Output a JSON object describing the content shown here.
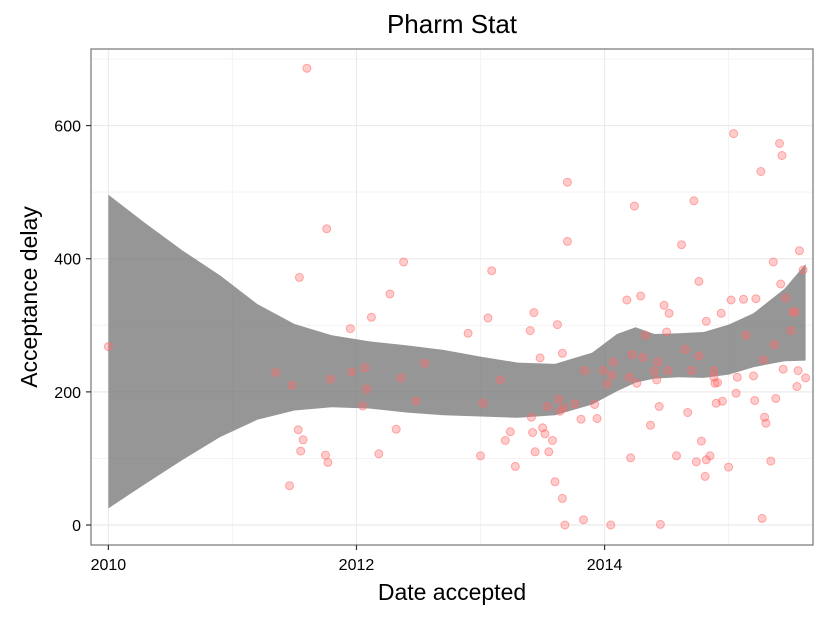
{
  "chart_data": {
    "type": "scatter",
    "title": "Pharm Stat",
    "xlabel": "Date accepted",
    "ylabel": "Acceptance delay",
    "xlim": [
      2009.86,
      2015.68
    ],
    "ylim": [
      -30,
      715
    ],
    "x_ticks": [
      2010,
      2012,
      2014
    ],
    "x_tick_labels": [
      "2010",
      "2012",
      "2014"
    ],
    "y_ticks": [
      0,
      200,
      400,
      600
    ],
    "y_tick_labels": [
      "0",
      "200",
      "400",
      "600"
    ],
    "grid": true,
    "point_color": "#ff6b6b",
    "band_color": "#6e6e6e",
    "points": [
      [
        2010.0,
        268
      ],
      [
        2011.35,
        229
      ],
      [
        2011.46,
        59
      ],
      [
        2011.48,
        210
      ],
      [
        2011.53,
        143
      ],
      [
        2011.54,
        372
      ],
      [
        2011.55,
        111
      ],
      [
        2011.57,
        128
      ],
      [
        2011.6,
        686
      ],
      [
        2011.75,
        105
      ],
      [
        2011.76,
        445
      ],
      [
        2011.77,
        94
      ],
      [
        2011.79,
        219
      ],
      [
        2011.95,
        295
      ],
      [
        2011.96,
        230
      ],
      [
        2012.05,
        179
      ],
      [
        2012.07,
        236
      ],
      [
        2012.08,
        204
      ],
      [
        2012.12,
        312
      ],
      [
        2012.18,
        107
      ],
      [
        2012.27,
        347
      ],
      [
        2012.32,
        144
      ],
      [
        2012.36,
        221
      ],
      [
        2012.38,
        395
      ],
      [
        2012.48,
        186
      ],
      [
        2012.55,
        243
      ],
      [
        2012.9,
        288
      ],
      [
        2013.0,
        104
      ],
      [
        2013.02,
        183
      ],
      [
        2013.06,
        311
      ],
      [
        2013.09,
        382
      ],
      [
        2013.16,
        218
      ],
      [
        2013.2,
        127
      ],
      [
        2013.24,
        140
      ],
      [
        2013.28,
        88
      ],
      [
        2013.4,
        292
      ],
      [
        2013.41,
        162
      ],
      [
        2013.42,
        139
      ],
      [
        2013.43,
        319
      ],
      [
        2013.44,
        110
      ],
      [
        2013.48,
        251
      ],
      [
        2013.5,
        146
      ],
      [
        2013.52,
        137
      ],
      [
        2013.54,
        178
      ],
      [
        2013.55,
        110
      ],
      [
        2013.58,
        127
      ],
      [
        2013.6,
        65
      ],
      [
        2013.62,
        301
      ],
      [
        2013.63,
        189
      ],
      [
        2013.64,
        171
      ],
      [
        2013.66,
        40
      ],
      [
        2013.66,
        258
      ],
      [
        2013.67,
        176
      ],
      [
        2013.68,
        0
      ],
      [
        2013.7,
        515
      ],
      [
        2013.7,
        426
      ],
      [
        2013.76,
        182
      ],
      [
        2013.81,
        159
      ],
      [
        2013.83,
        8
      ],
      [
        2013.84,
        232
      ],
      [
        2013.92,
        181
      ],
      [
        2013.94,
        160
      ],
      [
        2013.99,
        232
      ],
      [
        2014.02,
        212
      ],
      [
        2014.05,
        0
      ],
      [
        2014.06,
        225
      ],
      [
        2014.07,
        245
      ],
      [
        2014.18,
        338
      ],
      [
        2014.2,
        222
      ],
      [
        2014.21,
        101
      ],
      [
        2014.22,
        256
      ],
      [
        2014.24,
        479
      ],
      [
        2014.26,
        213
      ],
      [
        2014.29,
        344
      ],
      [
        2014.31,
        252
      ],
      [
        2014.33,
        285
      ],
      [
        2014.37,
        150
      ],
      [
        2014.4,
        231
      ],
      [
        2014.42,
        218
      ],
      [
        2014.43,
        245
      ],
      [
        2014.44,
        178
      ],
      [
        2014.45,
        1
      ],
      [
        2014.48,
        330
      ],
      [
        2014.5,
        290
      ],
      [
        2014.51,
        232
      ],
      [
        2014.52,
        318
      ],
      [
        2014.58,
        104
      ],
      [
        2014.62,
        421
      ],
      [
        2014.65,
        264
      ],
      [
        2014.67,
        169
      ],
      [
        2014.7,
        232
      ],
      [
        2014.72,
        487
      ],
      [
        2014.74,
        95
      ],
      [
        2014.76,
        254
      ],
      [
        2014.76,
        366
      ],
      [
        2014.78,
        126
      ],
      [
        2014.81,
        73
      ],
      [
        2014.82,
        98
      ],
      [
        2014.82,
        306
      ],
      [
        2014.85,
        104
      ],
      [
        2014.88,
        232
      ],
      [
        2014.88,
        222
      ],
      [
        2014.89,
        213
      ],
      [
        2014.9,
        183
      ],
      [
        2014.91,
        214
      ],
      [
        2014.94,
        318
      ],
      [
        2014.95,
        186
      ],
      [
        2015.0,
        87
      ],
      [
        2015.02,
        338
      ],
      [
        2015.04,
        588
      ],
      [
        2015.06,
        198
      ],
      [
        2015.07,
        222
      ],
      [
        2015.12,
        339
      ],
      [
        2015.14,
        285
      ],
      [
        2015.2,
        224
      ],
      [
        2015.21,
        187
      ],
      [
        2015.22,
        340
      ],
      [
        2015.26,
        531
      ],
      [
        2015.27,
        10
      ],
      [
        2015.28,
        248
      ],
      [
        2015.29,
        162
      ],
      [
        2015.3,
        153
      ],
      [
        2015.34,
        96
      ],
      [
        2015.36,
        395
      ],
      [
        2015.37,
        271
      ],
      [
        2015.38,
        190
      ],
      [
        2015.41,
        573
      ],
      [
        2015.42,
        362
      ],
      [
        2015.43,
        555
      ],
      [
        2015.44,
        234
      ],
      [
        2015.46,
        341
      ],
      [
        2015.5,
        292
      ],
      [
        2015.52,
        320
      ],
      [
        2015.53,
        320
      ],
      [
        2015.55,
        208
      ],
      [
        2015.56,
        232
      ],
      [
        2015.57,
        412
      ],
      [
        2015.6,
        383
      ],
      [
        2015.62,
        221
      ]
    ],
    "band": [
      {
        "x": 2010.0,
        "lo": 25,
        "hi": 496
      },
      {
        "x": 2010.3,
        "lo": 62,
        "hi": 453
      },
      {
        "x": 2010.6,
        "lo": 98,
        "hi": 412
      },
      {
        "x": 2010.9,
        "lo": 132,
        "hi": 375
      },
      {
        "x": 2011.2,
        "lo": 158,
        "hi": 332
      },
      {
        "x": 2011.5,
        "lo": 172,
        "hi": 302
      },
      {
        "x": 2011.8,
        "lo": 177,
        "hi": 285
      },
      {
        "x": 2012.1,
        "lo": 175,
        "hi": 276
      },
      {
        "x": 2012.4,
        "lo": 169,
        "hi": 270
      },
      {
        "x": 2012.7,
        "lo": 165,
        "hi": 263
      },
      {
        "x": 2013.0,
        "lo": 163,
        "hi": 253
      },
      {
        "x": 2013.3,
        "lo": 161,
        "hi": 244
      },
      {
        "x": 2013.6,
        "lo": 165,
        "hi": 242
      },
      {
        "x": 2013.9,
        "lo": 181,
        "hi": 259
      },
      {
        "x": 2014.1,
        "lo": 201,
        "hi": 287
      },
      {
        "x": 2014.25,
        "lo": 214,
        "hi": 297
      },
      {
        "x": 2014.4,
        "lo": 220,
        "hi": 287
      },
      {
        "x": 2014.6,
        "lo": 222,
        "hi": 288
      },
      {
        "x": 2014.8,
        "lo": 221,
        "hi": 290
      },
      {
        "x": 2015.0,
        "lo": 226,
        "hi": 301
      },
      {
        "x": 2015.2,
        "lo": 237,
        "hi": 318
      },
      {
        "x": 2015.45,
        "lo": 246,
        "hi": 355
      },
      {
        "x": 2015.62,
        "lo": 247,
        "hi": 392
      }
    ]
  }
}
